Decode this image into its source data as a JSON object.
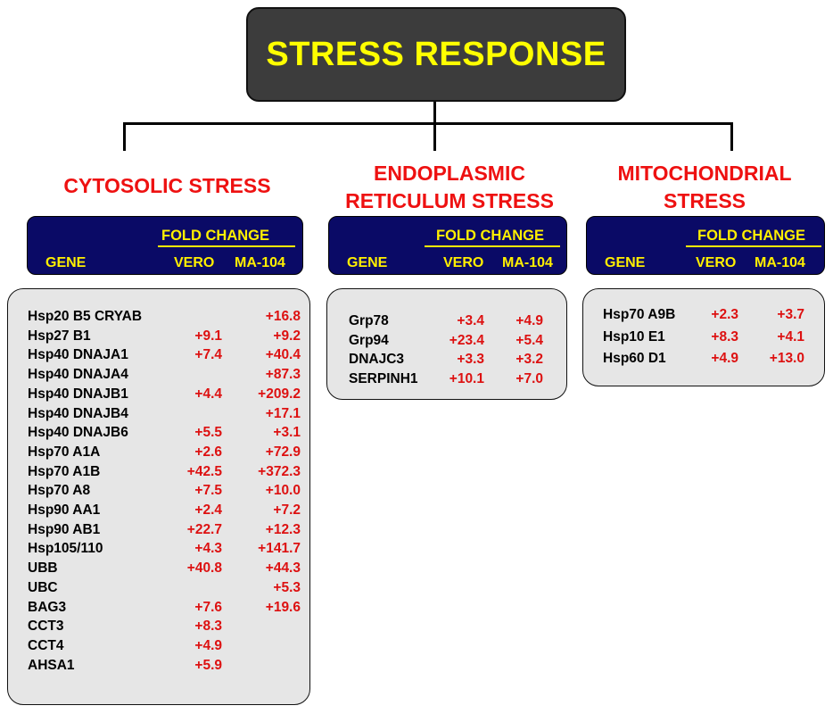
{
  "title": "STRESS RESPONSE",
  "colors": {
    "title_bg": "#3c3c3c",
    "title_text": "#ffff00",
    "section_title": "#ee1111",
    "header_bg": "#0a0a66",
    "header_text": "#ffef00",
    "value_text": "#dd1111",
    "box_bg": "#e6e6e6"
  },
  "columns": {
    "fold_change": "FOLD  CHANGE",
    "gene": "GENE",
    "vero": "VERO",
    "ma104": "MA-104"
  },
  "sections": [
    {
      "title_lines": [
        "CYTOSOLIC STRESS"
      ],
      "rows": [
        {
          "gene": "Hsp20 B5 CRYAB",
          "vero": "",
          "ma104": "+16.8"
        },
        {
          "gene": "Hsp27 B1",
          "vero": "+9.1",
          "ma104": "+9.2"
        },
        {
          "gene": "Hsp40 DNAJA1",
          "vero": "+7.4",
          "ma104": "+40.4"
        },
        {
          "gene": "Hsp40 DNAJA4",
          "vero": "",
          "ma104": "+87.3"
        },
        {
          "gene": "Hsp40 DNAJB1",
          "vero": "+4.4",
          "ma104": "+209.2"
        },
        {
          "gene": "Hsp40 DNAJB4",
          "vero": "",
          "ma104": "+17.1"
        },
        {
          "gene": "Hsp40 DNAJB6",
          "vero": "+5.5",
          "ma104": "+3.1"
        },
        {
          "gene": "Hsp70 A1A",
          "vero": "+2.6",
          "ma104": "+72.9"
        },
        {
          "gene": "Hsp70 A1B",
          "vero": "+42.5",
          "ma104": "+372.3"
        },
        {
          "gene": "Hsp70 A8",
          "vero": "+7.5",
          "ma104": "+10.0"
        },
        {
          "gene": "Hsp90 AA1",
          "vero": "+2.4",
          "ma104": "+7.2"
        },
        {
          "gene": "Hsp90 AB1",
          "vero": "+22.7",
          "ma104": "+12.3"
        },
        {
          "gene": "Hsp105/110",
          "vero": "+4.3",
          "ma104": "+141.7"
        },
        {
          "gene": "UBB",
          "vero": "+40.8",
          "ma104": "+44.3"
        },
        {
          "gene": "UBC",
          "vero": "",
          "ma104": "+5.3"
        },
        {
          "gene": "BAG3",
          "vero": "+7.6",
          "ma104": "+19.6"
        },
        {
          "gene": "CCT3",
          "vero": "+8.3",
          "ma104": ""
        },
        {
          "gene": "CCT4",
          "vero": "+4.9",
          "ma104": ""
        },
        {
          "gene": "AHSA1",
          "vero": "+5.9",
          "ma104": ""
        }
      ]
    },
    {
      "title_lines": [
        "ENDOPLASMIC",
        "RETICULUM STRESS"
      ],
      "rows": [
        {
          "gene": "Grp78",
          "vero": "+3.4",
          "ma104": "+4.9"
        },
        {
          "gene": "Grp94",
          "vero": "+23.4",
          "ma104": "+5.4"
        },
        {
          "gene": "DNAJC3",
          "vero": "+3.3",
          "ma104": "+3.2"
        },
        {
          "gene": "SERPINH1",
          "vero": "+10.1",
          "ma104": "+7.0"
        }
      ]
    },
    {
      "title_lines": [
        "MITOCHONDRIAL",
        "STRESS"
      ],
      "rows": [
        {
          "gene": "Hsp70 A9B",
          "vero": "+2.3",
          "ma104": "+3.7"
        },
        {
          "gene": "Hsp10 E1",
          "vero": "+8.3",
          "ma104": "+4.1"
        },
        {
          "gene": "Hsp60 D1",
          "vero": "+4.9",
          "ma104": "+13.0"
        }
      ]
    }
  ]
}
